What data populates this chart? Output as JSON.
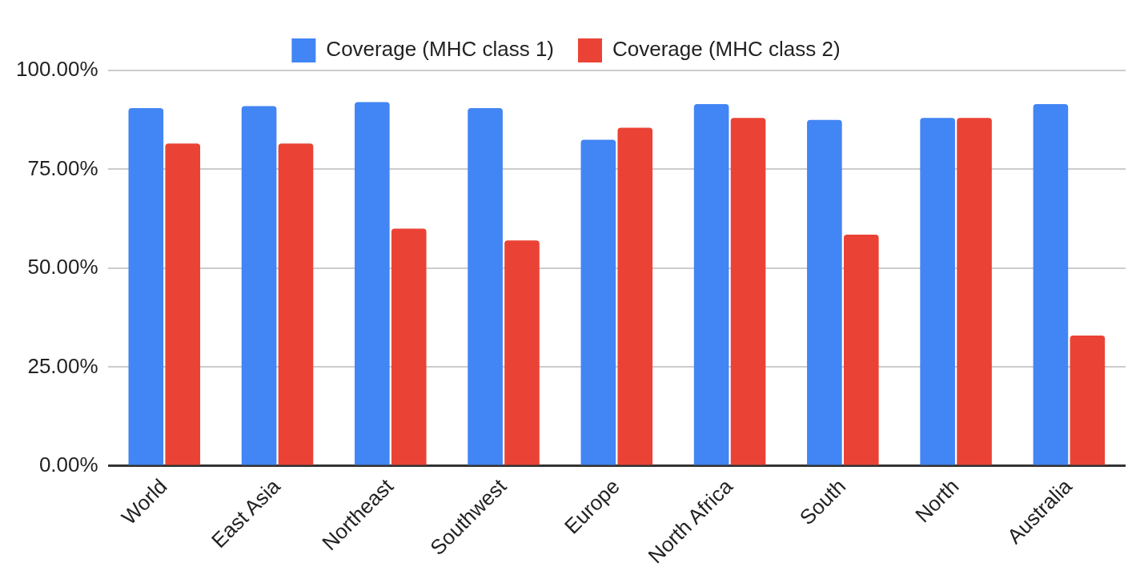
{
  "chart_data": {
    "type": "bar",
    "categories": [
      "World",
      "East Asia",
      "Northeast",
      "Southwest",
      "Europe",
      "North Africa",
      "South",
      "North",
      "Australia"
    ],
    "series": [
      {
        "name": "Coverage (MHC class 1)",
        "color": "#4285f4",
        "values": [
          90.5,
          91,
          92,
          90.5,
          82.5,
          91.5,
          87.5,
          88,
          91.5
        ]
      },
      {
        "name": "Coverage (MHC class 2)",
        "color": "#ea4335",
        "values": [
          81.5,
          81.5,
          60,
          57,
          85.5,
          88,
          58.5,
          88,
          33
        ]
      }
    ],
    "ylim": [
      0,
      100
    ],
    "yticks": [
      {
        "value": 0,
        "label": "0.00%"
      },
      {
        "value": 25,
        "label": "25.00%"
      },
      {
        "value": 50,
        "label": "50.00%"
      },
      {
        "value": 75,
        "label": "75.00%"
      },
      {
        "value": 100,
        "label": "100.00%"
      }
    ],
    "grid": "y",
    "legend": "top"
  }
}
